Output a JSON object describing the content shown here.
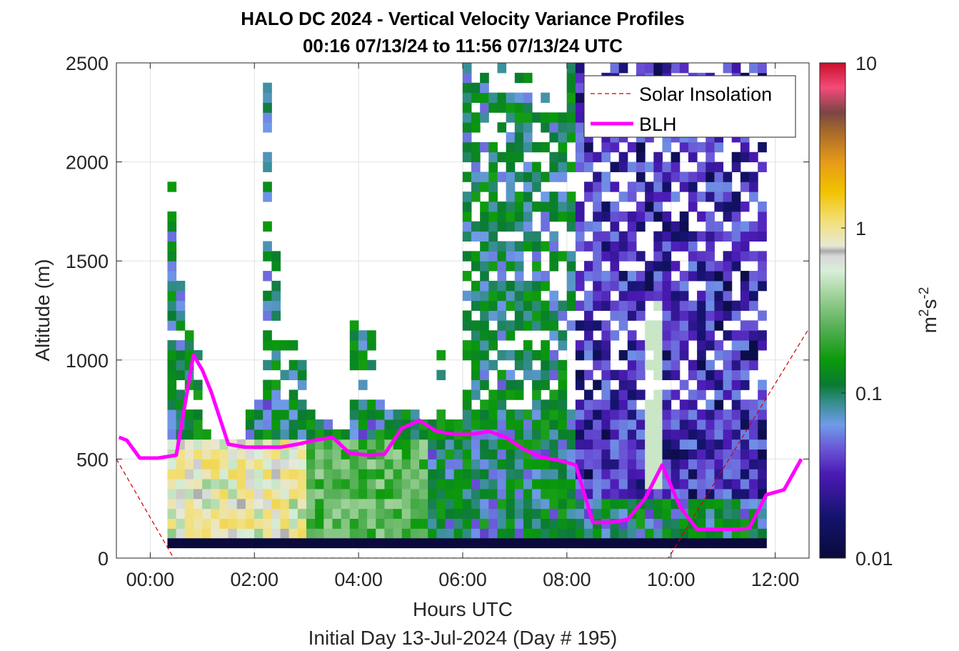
{
  "chart_data": {
    "type": "heatmap",
    "title_line1": "HALO DC 2024 - Vertical Velocity Variance Profiles",
    "title_line2": "00:16 07/13/24 to 11:56 07/13/24  UTC",
    "xlabel": "Hours UTC",
    "subtitle": "Initial Day 13-Jul-2024 (Day # 195)",
    "ylabel": "Altitude (m)",
    "xlim": [
      -0.65,
      12.65
    ],
    "ylim": [
      0,
      2500
    ],
    "x_tick_labels": [
      "00:00",
      "02:00",
      "04:00",
      "06:00",
      "08:00",
      "10:00",
      "12:00"
    ],
    "x_tick_values": [
      0,
      2,
      4,
      6,
      8,
      10,
      12
    ],
    "y_tick_values": [
      0,
      500,
      1000,
      1500,
      2000,
      2500
    ],
    "y_tick_labels": [
      "0",
      "500",
      "1000",
      "1500",
      "2000",
      "2500"
    ],
    "grid": true,
    "colorbar": {
      "scale": "log",
      "label": "m²s⁻²",
      "label_base": "m",
      "label_exp1": "2",
      "label_mid": "s",
      "label_exp2": "-2",
      "tick_values": [
        0.01,
        0.1,
        1,
        10
      ],
      "tick_labels": [
        "0.01",
        "0.1",
        "1",
        "10"
      ],
      "range": [
        0.01,
        10
      ]
    },
    "heatmap": {
      "x_start": 0.33,
      "x_end": 11.87,
      "bin_hours": 0.1667,
      "bin_m": 50,
      "min_alt_m": 100,
      "profile_tops_m": [
        1900,
        1400,
        1200,
        1050,
        650,
        600,
        600,
        600,
        600,
        750,
        800,
        2400,
        1550,
        1150,
        1150,
        1000,
        750,
        700,
        700,
        650,
        650,
        1300,
        1150,
        1150,
        850,
        750,
        750,
        750,
        750,
        700,
        700,
        1050,
        700,
        700,
        2500,
        2450,
        2500,
        2350,
        2500,
        2500,
        2500,
        2450,
        2250,
        2350,
        2250,
        2250,
        2500,
        2500,
        2350,
        2500,
        2450,
        2500,
        2500,
        2500,
        2500,
        2500,
        2500,
        2500,
        2500,
        2500,
        2500,
        2500,
        2500,
        2500,
        2500,
        2500,
        2500,
        2500,
        2500
      ],
      "min_alt_note": "lowest gate near ground shows ~0.01 (dark) everywhere"
    },
    "series": [
      {
        "name": "Solar Insolation",
        "style": "dashed",
        "color": "#d00000",
        "x": [
          -0.65,
          0.45,
          9.95,
          12.65
        ],
        "y": [
          500,
          0,
          0,
          1160
        ]
      },
      {
        "name": "BLH",
        "style": "solid",
        "color": "#ff00ff",
        "x": [
          -0.6,
          -0.45,
          -0.2,
          0.15,
          0.5,
          0.83,
          1.0,
          1.17,
          1.5,
          1.83,
          2.17,
          2.5,
          2.83,
          3.17,
          3.5,
          3.83,
          4.17,
          4.5,
          4.83,
          5.17,
          5.5,
          5.83,
          6.17,
          6.5,
          6.83,
          7.17,
          7.5,
          7.83,
          8.17,
          8.5,
          8.83,
          9.17,
          9.5,
          9.83,
          10.17,
          10.5,
          10.83,
          11.17,
          11.5,
          11.83,
          12.17,
          12.5
        ],
        "y": [
          610,
          595,
          505,
          505,
          520,
          1025,
          950,
          840,
          575,
          560,
          560,
          560,
          575,
          595,
          610,
          530,
          520,
          525,
          655,
          695,
          640,
          625,
          625,
          640,
          610,
          550,
          510,
          495,
          470,
          180,
          180,
          195,
          300,
          470,
          260,
          145,
          145,
          145,
          150,
          320,
          345,
          500
        ]
      }
    ]
  }
}
